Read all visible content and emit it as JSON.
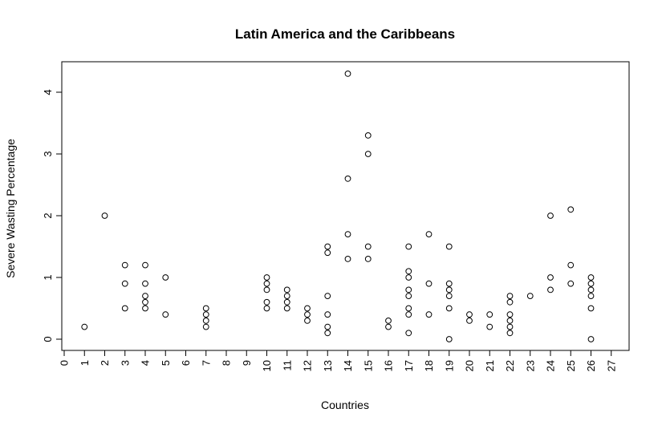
{
  "chart_data": {
    "type": "scatter",
    "title": "Latin America and the Caribbeans",
    "xlabel": "Countries",
    "ylabel": "Severe Wasting Percentage",
    "xlim": [
      0,
      27
    ],
    "ylim": [
      0,
      4.3
    ],
    "x_ticks": [
      "0",
      "1",
      "2",
      "3",
      "4",
      "5",
      "6",
      "7",
      "8",
      "9",
      "10",
      "11",
      "12",
      "13",
      "14",
      "15",
      "16",
      "17",
      "18",
      "19",
      "20",
      "21",
      "22",
      "23",
      "24",
      "25",
      "26",
      "27"
    ],
    "y_ticks": [
      "0",
      "1",
      "2",
      "3",
      "4"
    ],
    "grid": false,
    "legend": "none",
    "points": [
      [
        1,
        0.2
      ],
      [
        2,
        2.0
      ],
      [
        3,
        0.5
      ],
      [
        3,
        0.9
      ],
      [
        3,
        1.2
      ],
      [
        4,
        0.5
      ],
      [
        4,
        0.6
      ],
      [
        4,
        0.7
      ],
      [
        4,
        0.9
      ],
      [
        4,
        1.2
      ],
      [
        5,
        0.4
      ],
      [
        5,
        1.0
      ],
      [
        7,
        0.2
      ],
      [
        7,
        0.3
      ],
      [
        7,
        0.4
      ],
      [
        7,
        0.5
      ],
      [
        10,
        0.5
      ],
      [
        10,
        0.6
      ],
      [
        10,
        0.8
      ],
      [
        10,
        0.9
      ],
      [
        10,
        1.0
      ],
      [
        11,
        0.5
      ],
      [
        11,
        0.6
      ],
      [
        11,
        0.7
      ],
      [
        11,
        0.8
      ],
      [
        12,
        0.3
      ],
      [
        12,
        0.4
      ],
      [
        12,
        0.5
      ],
      [
        13,
        0.1
      ],
      [
        13,
        0.2
      ],
      [
        13,
        0.4
      ],
      [
        13,
        0.7
      ],
      [
        13,
        1.4
      ],
      [
        13,
        1.5
      ],
      [
        14,
        1.3
      ],
      [
        14,
        1.7
      ],
      [
        14,
        2.6
      ],
      [
        14,
        4.3
      ],
      [
        15,
        1.3
      ],
      [
        15,
        1.5
      ],
      [
        15,
        3.0
      ],
      [
        15,
        3.3
      ],
      [
        16,
        0.2
      ],
      [
        16,
        0.3
      ],
      [
        17,
        0.1
      ],
      [
        17,
        0.4
      ],
      [
        17,
        0.5
      ],
      [
        17,
        0.7
      ],
      [
        17,
        0.8
      ],
      [
        17,
        1.0
      ],
      [
        17,
        1.1
      ],
      [
        17,
        1.5
      ],
      [
        18,
        0.4
      ],
      [
        18,
        0.9
      ],
      [
        18,
        1.7
      ],
      [
        19,
        0.0
      ],
      [
        19,
        0.5
      ],
      [
        19,
        0.7
      ],
      [
        19,
        0.8
      ],
      [
        19,
        0.9
      ],
      [
        19,
        1.5
      ],
      [
        20,
        0.3
      ],
      [
        20,
        0.4
      ],
      [
        21,
        0.2
      ],
      [
        21,
        0.4
      ],
      [
        22,
        0.1
      ],
      [
        22,
        0.2
      ],
      [
        22,
        0.3
      ],
      [
        22,
        0.4
      ],
      [
        22,
        0.6
      ],
      [
        22,
        0.7
      ],
      [
        23,
        0.7
      ],
      [
        24,
        0.8
      ],
      [
        24,
        1.0
      ],
      [
        24,
        2.0
      ],
      [
        25,
        0.9
      ],
      [
        25,
        1.2
      ],
      [
        25,
        2.1
      ],
      [
        26,
        0.0
      ],
      [
        26,
        0.5
      ],
      [
        26,
        0.7
      ],
      [
        26,
        0.8
      ],
      [
        26,
        0.9
      ],
      [
        26,
        1.0
      ]
    ]
  }
}
